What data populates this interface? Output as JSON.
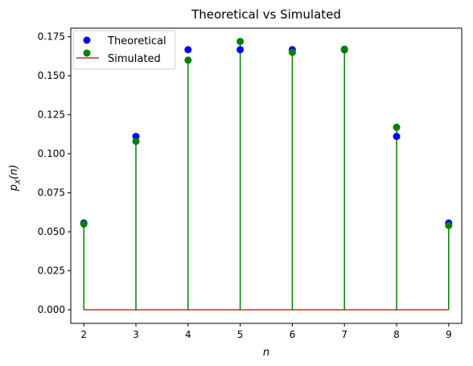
{
  "chart_data": {
    "type": "scatter",
    "title": "Theoretical vs Simulated",
    "xlabel": "n",
    "ylabel_main": "p",
    "ylabel_sub": "X",
    "ylabel_tail": "(n)",
    "xlim": [
      1.75,
      9.25
    ],
    "ylim": [
      -0.0087,
      0.1805
    ],
    "x_ticks": [
      2,
      3,
      4,
      5,
      6,
      7,
      8,
      9
    ],
    "y_ticks": [
      0.0,
      0.025,
      0.05,
      0.075,
      0.1,
      0.125,
      0.15,
      0.175
    ],
    "y_tick_labels": [
      "0.000",
      "0.025",
      "0.050",
      "0.075",
      "0.100",
      "0.125",
      "0.150",
      "0.175"
    ],
    "grid": false,
    "legend_position": "top-left",
    "baseline_color": "#d62728",
    "series": [
      {
        "name": "Theoretical",
        "color": "#0000ff",
        "x": [
          2,
          3,
          4,
          5,
          6,
          7,
          8,
          9
        ],
        "values": [
          0.0556,
          0.1111,
          0.1667,
          0.1667,
          0.1667,
          0.1667,
          0.1111,
          0.0556
        ]
      },
      {
        "name": "Simulated",
        "color": "#008000",
        "x": [
          2,
          3,
          4,
          5,
          6,
          7,
          8,
          9
        ],
        "values": [
          0.055,
          0.108,
          0.16,
          0.172,
          0.165,
          0.167,
          0.117,
          0.054
        ]
      }
    ],
    "legend": [
      {
        "label": "Theoretical",
        "kind": "marker",
        "color": "#0000ff"
      },
      {
        "label": "Simulated",
        "kind": "line",
        "color": "#d62728"
      },
      {
        "label": "Simulated",
        "kind": "marker",
        "color": "#008000"
      }
    ]
  }
}
